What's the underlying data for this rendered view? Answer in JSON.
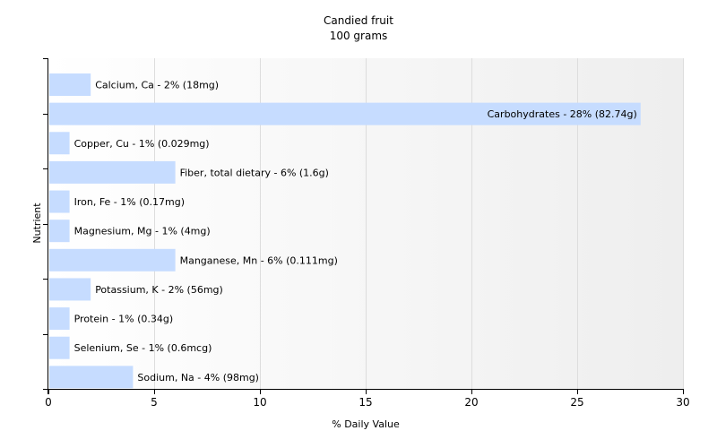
{
  "chart_data": {
    "type": "bar",
    "orientation": "horizontal",
    "title": "Candied fruit",
    "subtitle": "100 grams",
    "xlabel": "% Daily Value",
    "ylabel": "Nutrient",
    "xlim": [
      0,
      30
    ],
    "xticks": [
      0,
      5,
      10,
      15,
      20,
      25,
      30
    ],
    "grid": true,
    "bar_color": "#c6dcff",
    "bars": [
      {
        "category": "Calcium, Ca",
        "value": 2,
        "label": "Calcium, Ca - 2% (18mg)"
      },
      {
        "category": "Carbohydrates",
        "value": 28,
        "label": "Carbohydrates - 28% (82.74g)"
      },
      {
        "category": "Copper, Cu",
        "value": 1,
        "label": "Copper, Cu - 1% (0.029mg)"
      },
      {
        "category": "Fiber, total dietary",
        "value": 6,
        "label": "Fiber, total dietary - 6% (1.6g)"
      },
      {
        "category": "Iron, Fe",
        "value": 1,
        "label": "Iron, Fe - 1% (0.17mg)"
      },
      {
        "category": "Magnesium, Mg",
        "value": 1,
        "label": "Magnesium, Mg - 1% (4mg)"
      },
      {
        "category": "Manganese, Mn",
        "value": 6,
        "label": "Manganese, Mn - 6% (0.111mg)"
      },
      {
        "category": "Potassium, K",
        "value": 2,
        "label": "Potassium, K - 2% (56mg)"
      },
      {
        "category": "Protein",
        "value": 1,
        "label": "Protein - 1% (0.34g)"
      },
      {
        "category": "Selenium, Se",
        "value": 1,
        "label": "Selenium, Se - 1% (0.6mcg)"
      },
      {
        "category": "Sodium, Na",
        "value": 4,
        "label": "Sodium, Na - 4% (98mg)"
      }
    ]
  }
}
